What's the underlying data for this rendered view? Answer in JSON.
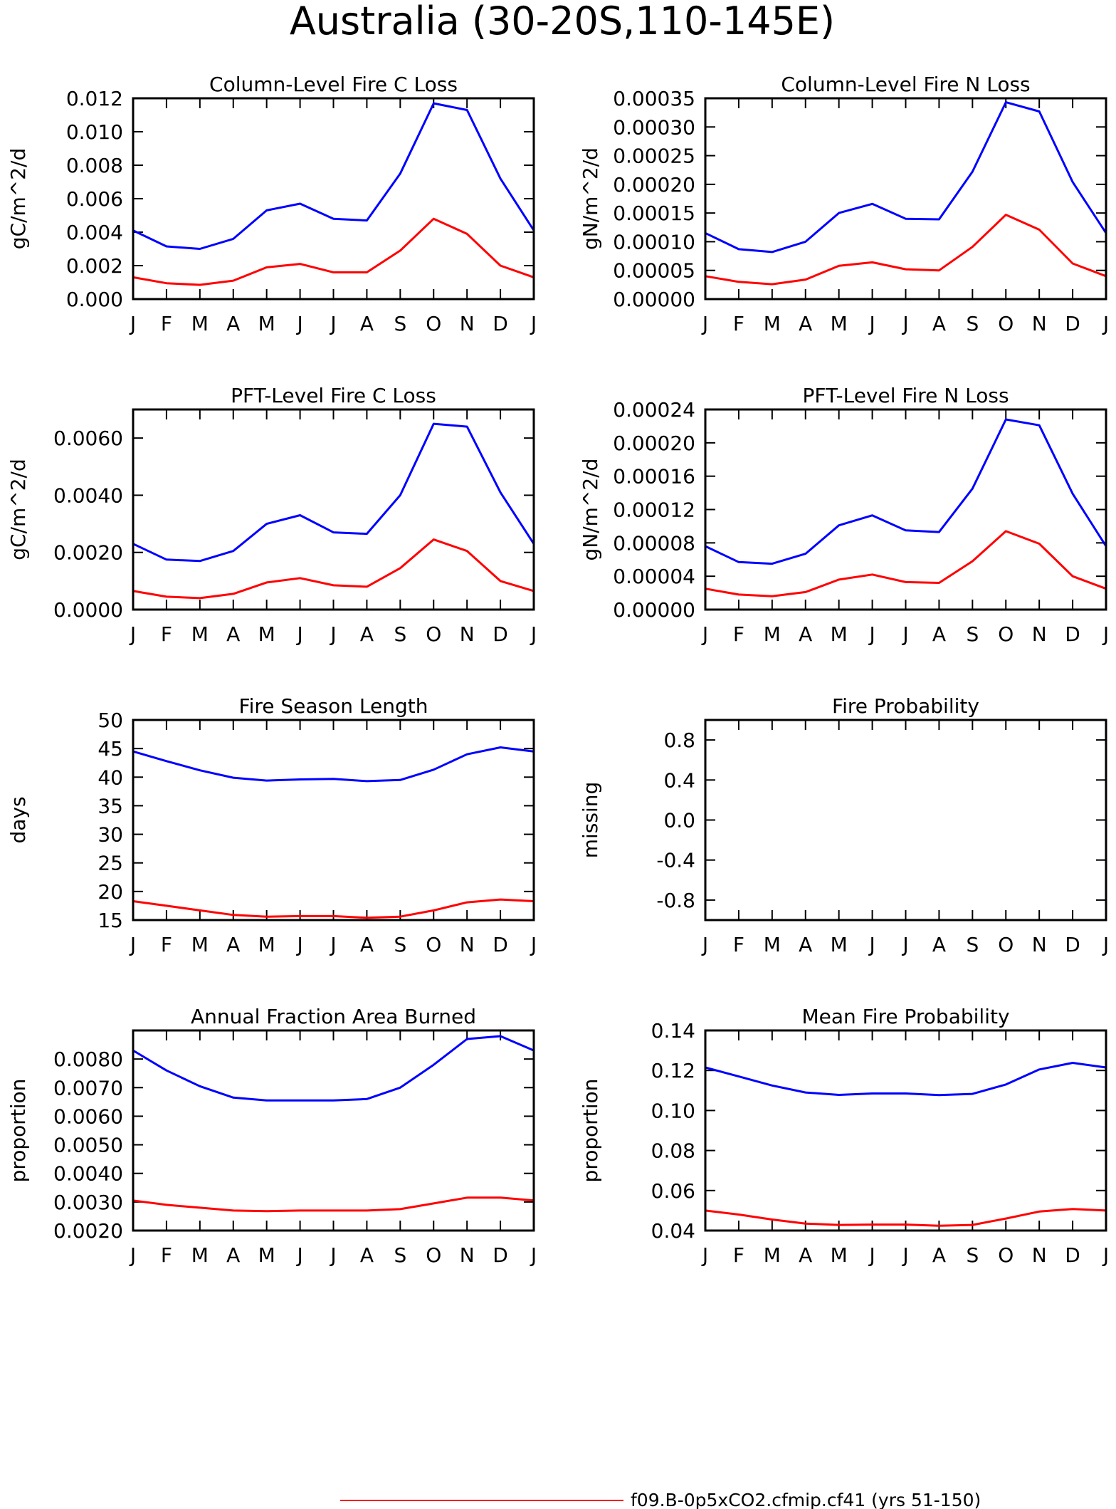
{
  "title": "Australia (30-20S,110-145E)",
  "months": [
    "J",
    "F",
    "M",
    "A",
    "M",
    "J",
    "J",
    "A",
    "S",
    "O",
    "N",
    "D",
    "J"
  ],
  "legend": [
    {
      "label": "f09.B-0p5xCO2.cfmip.cf41 (yrs 51-150)",
      "color": "#ff0000"
    }
  ],
  "colors": {
    "series1": "#0000ff",
    "series2": "#ff0000"
  },
  "chart_data": [
    {
      "type": "line",
      "title": "Column-Level Fire C Loss",
      "ylabel": "gC/m^2/d",
      "ylim": [
        0,
        0.012
      ],
      "yticks": [
        "0.000",
        "0.002",
        "0.004",
        "0.006",
        "0.008",
        "0.010",
        "0.012"
      ],
      "ytick_values": [
        0,
        0.002,
        0.004,
        0.006,
        0.008,
        0.01,
        0.012
      ],
      "x": [
        "J",
        "F",
        "M",
        "A",
        "M",
        "J",
        "J",
        "A",
        "S",
        "O",
        "N",
        "D",
        "J"
      ],
      "series": [
        {
          "values": [
            0.0041,
            0.00315,
            0.003,
            0.0036,
            0.0053,
            0.0057,
            0.0048,
            0.0047,
            0.0075,
            0.0117,
            0.0113,
            0.0072,
            0.0041
          ],
          "color": "#0000ff"
        },
        {
          "values": [
            0.0013,
            0.00095,
            0.00085,
            0.0011,
            0.0019,
            0.0021,
            0.0016,
            0.0016,
            0.0029,
            0.0048,
            0.0039,
            0.002,
            0.0013
          ],
          "color": "#ff0000"
        }
      ]
    },
    {
      "type": "line",
      "title": "Column-Level Fire N Loss",
      "ylabel": "gN/m^2/d",
      "ylim": [
        0,
        0.00035
      ],
      "yticks": [
        "0.00000",
        "0.00005",
        "0.00010",
        "0.00015",
        "0.00020",
        "0.00025",
        "0.00030",
        "0.00035"
      ],
      "ytick_values": [
        0,
        5e-05,
        0.0001,
        0.00015,
        0.0002,
        0.00025,
        0.0003,
        0.00035
      ],
      "x": [
        "J",
        "F",
        "M",
        "A",
        "M",
        "J",
        "J",
        "A",
        "S",
        "O",
        "N",
        "D",
        "J"
      ],
      "series": [
        {
          "values": [
            0.000115,
            8.7e-05,
            8.2e-05,
            0.0001,
            0.00015,
            0.000166,
            0.00014,
            0.000139,
            0.000222,
            0.000343,
            0.000327,
            0.000204,
            0.000115
          ],
          "color": "#0000ff"
        },
        {
          "values": [
            4e-05,
            3e-05,
            2.6e-05,
            3.4e-05,
            5.8e-05,
            6.4e-05,
            5.2e-05,
            5e-05,
            9.1e-05,
            0.000147,
            0.000121,
            6.2e-05,
            4e-05
          ],
          "color": "#ff0000"
        }
      ]
    },
    {
      "type": "line",
      "title": "PFT-Level Fire C Loss",
      "ylabel": "gC/m^2/d",
      "ylim": [
        0,
        0.007
      ],
      "yticks": [
        "0.0000",
        "0.0020",
        "0.0040",
        "0.0060"
      ],
      "ytick_values": [
        0,
        0.002,
        0.004,
        0.006
      ],
      "x": [
        "J",
        "F",
        "M",
        "A",
        "M",
        "J",
        "J",
        "A",
        "S",
        "O",
        "N",
        "D",
        "J"
      ],
      "series": [
        {
          "values": [
            0.0023,
            0.00175,
            0.0017,
            0.00205,
            0.003,
            0.0033,
            0.0027,
            0.00265,
            0.004,
            0.0065,
            0.0064,
            0.0041,
            0.0023
          ],
          "color": "#0000ff"
        },
        {
          "values": [
            0.00065,
            0.00045,
            0.0004,
            0.00055,
            0.00095,
            0.0011,
            0.00085,
            0.0008,
            0.00145,
            0.00245,
            0.00205,
            0.001,
            0.00065
          ],
          "color": "#ff0000"
        }
      ]
    },
    {
      "type": "line",
      "title": "PFT-Level Fire N Loss",
      "ylabel": "gN/m^2/d",
      "ylim": [
        0,
        0.00024
      ],
      "yticks": [
        "0.00000",
        "0.00004",
        "0.00008",
        "0.00012",
        "0.00016",
        "0.00020",
        "0.00024"
      ],
      "ytick_values": [
        0,
        4e-05,
        8e-05,
        0.00012,
        0.00016,
        0.0002,
        0.00024
      ],
      "x": [
        "J",
        "F",
        "M",
        "A",
        "M",
        "J",
        "J",
        "A",
        "S",
        "O",
        "N",
        "D",
        "J"
      ],
      "series": [
        {
          "values": [
            7.6e-05,
            5.7e-05,
            5.5e-05,
            6.7e-05,
            0.000101,
            0.000113,
            9.5e-05,
            9.3e-05,
            0.000145,
            0.000228,
            0.000221,
            0.000139,
            7.6e-05
          ],
          "color": "#0000ff"
        },
        {
          "values": [
            2.5e-05,
            1.8e-05,
            1.6e-05,
            2.1e-05,
            3.6e-05,
            4.2e-05,
            3.3e-05,
            3.2e-05,
            5.8e-05,
            9.4e-05,
            7.9e-05,
            4e-05,
            2.5e-05
          ],
          "color": "#ff0000"
        }
      ]
    },
    {
      "type": "line",
      "title": "Fire Season Length",
      "ylabel": "days",
      "ylim": [
        15,
        50
      ],
      "yticks": [
        "15",
        "20",
        "25",
        "30",
        "35",
        "40",
        "45",
        "50"
      ],
      "ytick_values": [
        15,
        20,
        25,
        30,
        35,
        40,
        45,
        50
      ],
      "x": [
        "J",
        "F",
        "M",
        "A",
        "M",
        "J",
        "J",
        "A",
        "S",
        "O",
        "N",
        "D",
        "J"
      ],
      "series": [
        {
          "values": [
            44.5,
            42.8,
            41.2,
            39.9,
            39.4,
            39.6,
            39.7,
            39.3,
            39.5,
            41.3,
            44.0,
            45.2,
            44.5
          ],
          "color": "#0000ff"
        },
        {
          "values": [
            18.3,
            17.5,
            16.7,
            15.9,
            15.6,
            15.7,
            15.7,
            15.4,
            15.6,
            16.7,
            18.1,
            18.6,
            18.3
          ],
          "color": "#ff0000"
        }
      ]
    },
    {
      "type": "line",
      "title": "Fire Probability",
      "ylabel": "missing",
      "ylim": [
        -1,
        1
      ],
      "yticks": [
        "-0.8",
        "-0.4",
        "0.0",
        "0.4",
        "0.8"
      ],
      "ytick_values": [
        -0.8,
        -0.4,
        0,
        0.4,
        0.8
      ],
      "x": [
        "J",
        "F",
        "M",
        "A",
        "M",
        "J",
        "J",
        "A",
        "S",
        "O",
        "N",
        "D",
        "J"
      ],
      "series": []
    },
    {
      "type": "line",
      "title": "Annual Fraction Area Burned",
      "ylabel": "proportion",
      "ylim": [
        0.002,
        0.009
      ],
      "yticks": [
        "0.0020",
        "0.0030",
        "0.0040",
        "0.0050",
        "0.0060",
        "0.0070",
        "0.0080"
      ],
      "ytick_values": [
        0.002,
        0.003,
        0.004,
        0.005,
        0.006,
        0.007,
        0.008
      ],
      "x": [
        "J",
        "F",
        "M",
        "A",
        "M",
        "J",
        "J",
        "A",
        "S",
        "O",
        "N",
        "D",
        "J"
      ],
      "series": [
        {
          "values": [
            0.0083,
            0.0076,
            0.00705,
            0.00665,
            0.00655,
            0.00655,
            0.00655,
            0.0066,
            0.007,
            0.0078,
            0.0087,
            0.0088,
            0.0083
          ],
          "color": "#0000ff"
        },
        {
          "values": [
            0.00305,
            0.0029,
            0.0028,
            0.0027,
            0.00268,
            0.0027,
            0.0027,
            0.0027,
            0.00275,
            0.00295,
            0.00315,
            0.00315,
            0.00305
          ],
          "color": "#ff0000"
        }
      ]
    },
    {
      "type": "line",
      "title": "Mean Fire Probability",
      "ylabel": "proportion",
      "ylim": [
        0.04,
        0.14
      ],
      "yticks": [
        "0.04",
        "0.06",
        "0.08",
        "0.10",
        "0.12",
        "0.14"
      ],
      "ytick_values": [
        0.04,
        0.06,
        0.08,
        0.1,
        0.12,
        0.14
      ],
      "x": [
        "J",
        "F",
        "M",
        "A",
        "M",
        "J",
        "J",
        "A",
        "S",
        "O",
        "N",
        "D",
        "J"
      ],
      "series": [
        {
          "values": [
            0.1215,
            0.117,
            0.1125,
            0.109,
            0.1078,
            0.1085,
            0.1085,
            0.1077,
            0.1083,
            0.113,
            0.1205,
            0.1238,
            0.1215
          ],
          "color": "#0000ff"
        },
        {
          "values": [
            0.05,
            0.048,
            0.0455,
            0.0435,
            0.0428,
            0.043,
            0.043,
            0.0424,
            0.0428,
            0.046,
            0.0495,
            0.0508,
            0.05
          ],
          "color": "#ff0000"
        }
      ]
    }
  ]
}
